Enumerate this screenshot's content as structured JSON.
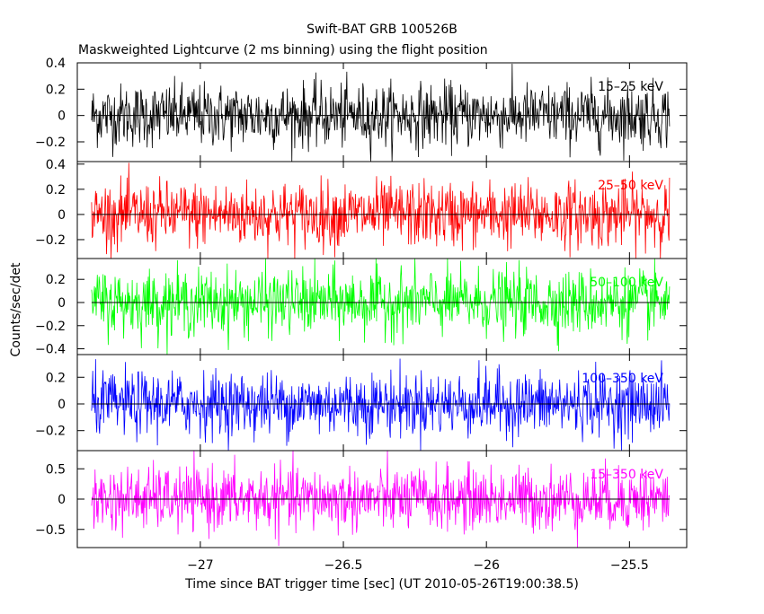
{
  "header": {
    "title": "Swift-BAT GRB 100526B",
    "subtitle": "Maskweighted Lightcurve (2 ms binning) using the flight position"
  },
  "chart_data": {
    "type": "line",
    "xlabel": "Time since BAT trigger time [sec] (UT 2010-05-26T19:00:38.5)",
    "ylabel": "Counts/sec/det",
    "xlim": [
      -27.43,
      -25.3
    ],
    "data_xrange": [
      -27.38,
      -25.36
    ],
    "bin_width": 0.002,
    "x_ticks": [
      {
        "value": -27,
        "label": "−27"
      },
      {
        "value": -26.5,
        "label": "−26.5"
      },
      {
        "value": -26,
        "label": "−26"
      },
      {
        "value": -25.5,
        "label": "−25.5"
      }
    ],
    "panels": [
      {
        "name": "15–25 keV",
        "color": "#000000",
        "ylim": [
          -0.35,
          0.4
        ],
        "noise_sigma": 0.12,
        "y_ticks": [
          {
            "value": 0.4,
            "label": "0.4"
          },
          {
            "value": 0.2,
            "label": "0.2"
          },
          {
            "value": 0,
            "label": "0"
          },
          {
            "value": -0.2,
            "label": "−0.2"
          }
        ]
      },
      {
        "name": "25–50 keV",
        "color": "#ff0000",
        "ylim": [
          -0.35,
          0.42
        ],
        "noise_sigma": 0.13,
        "y_ticks": [
          {
            "value": 0.4,
            "label": "0.4"
          },
          {
            "value": 0.2,
            "label": "0.2"
          },
          {
            "value": 0,
            "label": "0"
          },
          {
            "value": -0.2,
            "label": "−0.2"
          }
        ]
      },
      {
        "name": "50–100 keV",
        "color": "#00ff00",
        "ylim": [
          -0.45,
          0.38
        ],
        "noise_sigma": 0.14,
        "y_ticks": [
          {
            "value": 0.2,
            "label": "0.2"
          },
          {
            "value": 0,
            "label": "0"
          },
          {
            "value": -0.2,
            "label": "−0.2"
          },
          {
            "value": -0.4,
            "label": "−0.4"
          }
        ]
      },
      {
        "name": "100–350 keV",
        "color": "#0000ff",
        "ylim": [
          -0.35,
          0.37
        ],
        "noise_sigma": 0.12,
        "y_ticks": [
          {
            "value": 0.2,
            "label": "0.2"
          },
          {
            "value": 0,
            "label": "0"
          },
          {
            "value": -0.2,
            "label": "−0.2"
          }
        ]
      },
      {
        "name": "15–350 keV",
        "color": "#ff00ff",
        "ylim": [
          -0.8,
          0.8
        ],
        "noise_sigma": 0.26,
        "y_ticks": [
          {
            "value": 0.5,
            "label": "0.5"
          },
          {
            "value": 0,
            "label": "0"
          },
          {
            "value": -0.5,
            "label": "−0.5"
          }
        ]
      }
    ]
  }
}
